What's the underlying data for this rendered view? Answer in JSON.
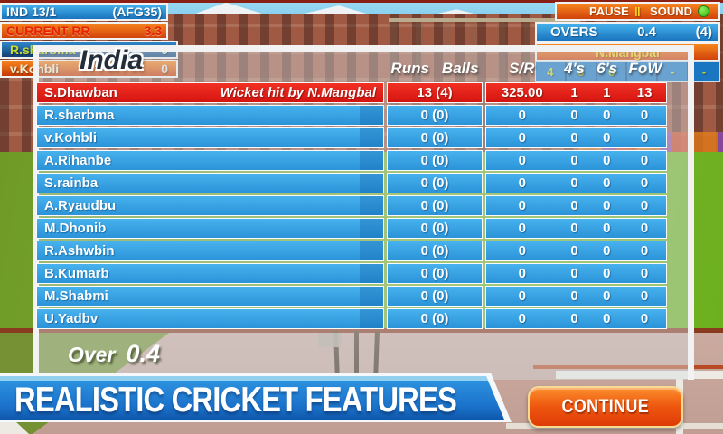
{
  "scoreboard": {
    "team_score": "IND  13/1",
    "opponent_label": "(AFG35)",
    "current_rr_label": "CURRENT RR",
    "current_rr_value": "3.3",
    "batsmen": [
      {
        "name": "R.sharbma",
        "score": "0"
      },
      {
        "name": "v.Kohbli",
        "score": "0"
      }
    ]
  },
  "top_right": {
    "pause_label": "PAUSE",
    "pause_icon": "‖",
    "sound_label": "SOUND",
    "overs_label": "OVERS",
    "overs_value": "0.4",
    "overs_total": "(4)",
    "bowler_name": "N.Mangbal",
    "balls": [
      "4",
      "3",
      "6",
      "-",
      "-",
      "-"
    ]
  },
  "panel": {
    "title": "India",
    "headers": {
      "runs": "Runs",
      "balls": "Balls",
      "sr": "S/R",
      "fours": "4's",
      "sixes": "6's",
      "fow": "FoW"
    },
    "rows": [
      {
        "name": "S.Dhawban",
        "note": "Wicket hit by N.Mangbal",
        "runs": "13 (4)",
        "sr": "325.00",
        "fours": "1",
        "sixes": "1",
        "fow": "13",
        "out": true
      },
      {
        "name": "R.sharbma",
        "note": "",
        "runs": "0 (0)",
        "sr": "0",
        "fours": "0",
        "sixes": "0",
        "fow": "0",
        "out": false
      },
      {
        "name": "v.Kohbli",
        "note": "",
        "runs": "0 (0)",
        "sr": "0",
        "fours": "0",
        "sixes": "0",
        "fow": "0",
        "out": false
      },
      {
        "name": "A.Rihanbe",
        "note": "",
        "runs": "0 (0)",
        "sr": "0",
        "fours": "0",
        "sixes": "0",
        "fow": "0",
        "out": false
      },
      {
        "name": "S.rainba",
        "note": "",
        "runs": "0 (0)",
        "sr": "0",
        "fours": "0",
        "sixes": "0",
        "fow": "0",
        "out": false
      },
      {
        "name": "A.Ryaudbu",
        "note": "",
        "runs": "0 (0)",
        "sr": "0",
        "fours": "0",
        "sixes": "0",
        "fow": "0",
        "out": false
      },
      {
        "name": "M.Dhonib",
        "note": "",
        "runs": "0 (0)",
        "sr": "0",
        "fours": "0",
        "sixes": "0",
        "fow": "0",
        "out": false
      },
      {
        "name": "R.Ashwbin",
        "note": "",
        "runs": "0 (0)",
        "sr": "0",
        "fours": "0",
        "sixes": "0",
        "fow": "0",
        "out": false
      },
      {
        "name": "B.Kumarb",
        "note": "",
        "runs": "0 (0)",
        "sr": "0",
        "fours": "0",
        "sixes": "0",
        "fow": "0",
        "out": false
      },
      {
        "name": "M.Shabmi",
        "note": "",
        "runs": "0 (0)",
        "sr": "0",
        "fours": "0",
        "sixes": "0",
        "fow": "0",
        "out": false
      },
      {
        "name": "U.Yadbv",
        "note": "",
        "runs": "0 (0)",
        "sr": "0",
        "fours": "0",
        "sixes": "0",
        "fow": "0",
        "out": false
      }
    ],
    "over_label": "Over",
    "over_value": "0.4"
  },
  "footer": {
    "banner_text": "REALISTIC CRICKET FEATURES",
    "continue_label": "CONTINUE"
  },
  "colors": {
    "hud_blue": "#1a74be",
    "hud_orange": "#e85a0d",
    "row_blue": "#35a0e2",
    "row_red": "#e81e14",
    "banner_blue": "#1b72ca",
    "button_orange": "#ef5810",
    "striker_name_yellow": "#c7d92e",
    "bowler_yellow": "#f0c81e",
    "rr_text_red": "#e81f00",
    "ball_text_yellow": "#c3d32c",
    "sound_indicator_green": "#4fd32a"
  }
}
